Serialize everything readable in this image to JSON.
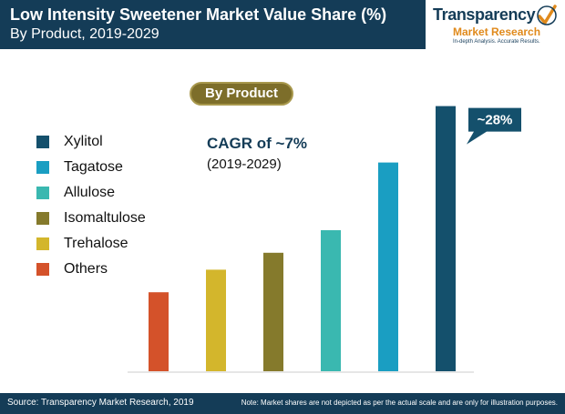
{
  "header": {
    "title": "Low Intensity Sweetener Market Value Share (%)",
    "subtitle": "By Product, 2019-2029"
  },
  "logo": {
    "line1": "Transparency",
    "line2": "Market Research",
    "line3": "In-depth Analysis. Accurate Results."
  },
  "segment_label": "By Product",
  "cagr": {
    "label": "CAGR of ~7%",
    "period": "(2019-2029)"
  },
  "callout": "~28%",
  "footer": {
    "source": "Source: Transparency Market Research, 2019",
    "note": "Note: Market shares are not depicted as per the actual scale and are only for illustration purposes."
  },
  "colors": {
    "header_bg": "#143c57",
    "pill_bg": "#7d6e2a",
    "logo_accent": "#e08a1c"
  },
  "chart_data": {
    "type": "bar",
    "title": "Low Intensity Sweetener Market Value Share (%)",
    "categories": [
      "Others",
      "Trehalose",
      "Isomaltulose",
      "Allulose",
      "Tagatose",
      "Xylitol"
    ],
    "values": [
      7,
      9,
      10.5,
      12.5,
      18.5,
      23.5
    ],
    "colors": [
      "#d4522a",
      "#d3b62c",
      "#857a2c",
      "#3ab8b0",
      "#1a9ec2",
      "#14506c"
    ],
    "ylim": [
      0,
      25
    ],
    "grid": false,
    "legend_placement": "left",
    "legend": [
      "Xylitol",
      "Tagatose",
      "Allulose",
      "Isomaltulose",
      "Trehalose",
      "Others"
    ],
    "annotations": [
      {
        "category": "Xylitol",
        "text": "~28%"
      }
    ]
  }
}
